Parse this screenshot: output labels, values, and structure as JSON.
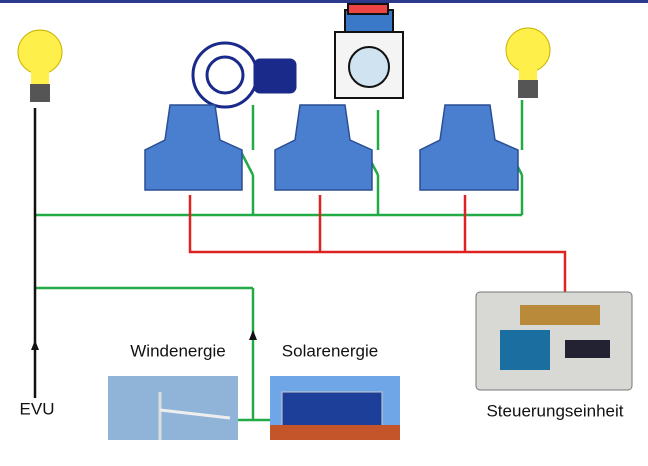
{
  "labels": {
    "wind": "Windenergie",
    "solar": "Solarenergie",
    "grid": "EVU",
    "controller": "Steuerungseinheit"
  }
}
